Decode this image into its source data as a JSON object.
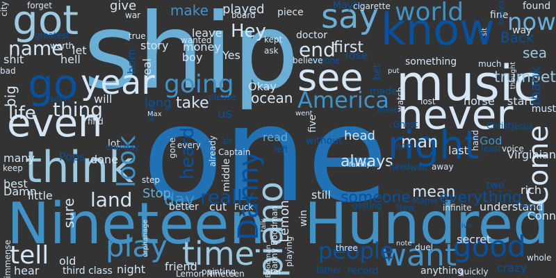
{
  "palette": {
    "background": "#333333",
    "pale": "#d6e6f4",
    "light": "#9ecae1",
    "mid": "#6baed6",
    "blue": "#4292c6",
    "strong": "#2171b5",
    "deep": "#08519c",
    "navy": "#08306b"
  },
  "words": [
    {
      "text": "one",
      "color": "strong"
    },
    {
      "text": "ship",
      "color": "mid"
    },
    {
      "text": "Nineteen",
      "color": "blue"
    },
    {
      "text": "Hundred",
      "color": "blue"
    },
    {
      "text": "music",
      "color": "pale"
    },
    {
      "text": "know",
      "color": "deep"
    },
    {
      "text": "never",
      "color": "pale"
    },
    {
      "text": "see",
      "color": "pale"
    },
    {
      "text": "go",
      "color": "deep"
    },
    {
      "text": "even",
      "color": "pale"
    },
    {
      "text": "think",
      "color": "light"
    },
    {
      "text": "right",
      "color": "deep"
    },
    {
      "text": "say",
      "color": "mid"
    },
    {
      "text": "got",
      "color": "light"
    },
    {
      "text": "year",
      "color": "pale"
    },
    {
      "text": "time",
      "color": "light"
    },
    {
      "text": "piano",
      "color": "light"
    },
    {
      "text": "want",
      "color": "blue"
    },
    {
      "text": "play",
      "color": "blue"
    },
    {
      "text": "going",
      "color": "blue"
    },
    {
      "text": "look",
      "color": "blue"
    },
    {
      "text": "world",
      "color": "blue"
    },
    {
      "text": "good",
      "color": "deep"
    },
    {
      "text": "now",
      "color": "mid"
    },
    {
      "text": "Come",
      "color": "pale"
    },
    {
      "text": "America",
      "color": "blue"
    },
    {
      "text": "tell",
      "color": "pale"
    },
    {
      "text": "people",
      "color": "deep"
    },
    {
      "text": "Danny",
      "color": "deep"
    },
    {
      "text": "thing",
      "color": "pale"
    },
    {
      "text": "life",
      "color": "pale"
    },
    {
      "text": "name",
      "color": "pale"
    },
    {
      "text": "end",
      "color": "pale"
    },
    {
      "text": "land",
      "color": "pale"
    },
    {
      "text": "man",
      "color": "pale"
    },
    {
      "text": "always",
      "color": "pale"
    },
    {
      "text": "day",
      "color": "blue"
    },
    {
      "text": "really",
      "color": "deep"
    },
    {
      "text": "heard",
      "color": "deep"
    },
    {
      "text": "mean",
      "color": "pale"
    },
    {
      "text": "someone",
      "color": "deep"
    },
    {
      "text": "everything",
      "color": "deep"
    },
    {
      "text": "sea",
      "color": "light"
    },
    {
      "text": "Back",
      "color": "deep"
    },
    {
      "text": "trumpet",
      "color": "light"
    },
    {
      "text": "first",
      "color": "pale"
    },
    {
      "text": "take",
      "color": "pale"
    },
    {
      "text": "ocean",
      "color": "pale"
    },
    {
      "text": "make",
      "color": "blue"
    },
    {
      "text": "played",
      "color": "pale"
    },
    {
      "text": "Hey",
      "color": "pale"
    },
    {
      "text": "long",
      "color": "deep"
    },
    {
      "text": "give",
      "color": "pale"
    },
    {
      "text": "head",
      "color": "pale"
    },
    {
      "text": "big",
      "color": "pale"
    },
    {
      "text": "Stop",
      "color": "mid"
    },
    {
      "text": "Virginian",
      "color": "pale"
    },
    {
      "text": "thank",
      "color": "deep"
    },
    {
      "text": "sure",
      "color": "pale"
    },
    {
      "text": "read",
      "color": "mid"
    },
    {
      "text": "still",
      "color": "pale"
    },
    {
      "text": "us",
      "color": "deep"
    },
    {
      "text": "horse",
      "color": "pale"
    },
    {
      "text": "start",
      "color": "pale"
    },
    {
      "text": "last",
      "color": "pale"
    },
    {
      "text": "Okay",
      "color": "pale"
    },
    {
      "text": "will",
      "color": "pale"
    },
    {
      "text": "lot",
      "color": "pale"
    },
    {
      "text": "done",
      "color": "pale"
    },
    {
      "text": "let",
      "color": "pale"
    },
    {
      "text": "hell",
      "color": "pale"
    },
    {
      "text": "born",
      "color": "deep"
    },
    {
      "text": "story",
      "color": "pale"
    },
    {
      "text": "money",
      "color": "pale"
    },
    {
      "text": "boy",
      "color": "pale"
    },
    {
      "text": "leave",
      "color": "pale"
    },
    {
      "text": "Yes",
      "color": "pale"
    },
    {
      "text": "lose",
      "color": "deep"
    },
    {
      "text": "shit",
      "color": "pale"
    },
    {
      "text": "understand",
      "color": "pale"
    },
    {
      "text": "secret",
      "color": "pale"
    },
    {
      "text": "rich",
      "color": "pale"
    },
    {
      "text": "must",
      "color": "pale"
    },
    {
      "text": "God",
      "color": "blue"
    },
    {
      "text": "old",
      "color": "pale"
    },
    {
      "text": "night",
      "color": "pale"
    },
    {
      "text": "friend",
      "color": "pale"
    },
    {
      "text": "hear",
      "color": "pale"
    },
    {
      "text": "little",
      "color": "pale"
    },
    {
      "text": "best",
      "color": "pale"
    },
    {
      "text": "Damn",
      "color": "pale"
    },
    {
      "text": "many",
      "color": "pale"
    },
    {
      "text": "Pops",
      "color": "deep"
    },
    {
      "text": "two",
      "color": "deep"
    },
    {
      "text": "fine",
      "color": "pale"
    },
    {
      "text": "way",
      "color": "pale"
    },
    {
      "text": "found",
      "color": "pale"
    },
    {
      "text": "something",
      "color": "pale"
    },
    {
      "text": "doctor",
      "color": "pale"
    },
    {
      "text": "better",
      "color": "pale"
    },
    {
      "text": "cut",
      "color": "pale"
    },
    {
      "text": "Fuck",
      "color": "pale"
    },
    {
      "text": "five",
      "color": "pale"
    },
    {
      "text": "Captain",
      "color": "pale"
    },
    {
      "text": "Danny Boodman",
      "color": "pale"
    },
    {
      "text": "Lemon",
      "color": "pale"
    },
    {
      "text": "crazy",
      "color": "deep"
    },
    {
      "text": "anything",
      "color": "pale"
    },
    {
      "text": "whole",
      "color": "pale"
    },
    {
      "text": "painting",
      "color": "pale"
    },
    {
      "text": "Lemon Nineteen",
      "color": "pale"
    },
    {
      "text": "immense",
      "color": "pale"
    },
    {
      "text": "third class",
      "color": "pale"
    },
    {
      "text": "record",
      "color": "deep"
    },
    {
      "text": "quickly",
      "color": "pale"
    },
    {
      "text": "duel",
      "color": "pale"
    },
    {
      "text": "three",
      "color": "pale"
    },
    {
      "text": "win",
      "color": "pale"
    },
    {
      "text": "playing",
      "color": "pale"
    },
    {
      "text": "Boodman",
      "color": "pale"
    },
    {
      "text": "later",
      "color": "pale"
    },
    {
      "text": "father",
      "color": "deep"
    },
    {
      "text": "made",
      "color": "deep"
    },
    {
      "text": "bet",
      "color": "deep"
    },
    {
      "text": "put",
      "color": "pale"
    },
    {
      "text": "watch",
      "color": "pale"
    },
    {
      "text": "lost",
      "color": "pale"
    },
    {
      "text": "without",
      "color": "deep"
    },
    {
      "text": "anyone",
      "color": "deep"
    },
    {
      "text": "believe",
      "color": "pale"
    },
    {
      "text": "much",
      "color": "pale"
    },
    {
      "text": "thought",
      "color": "pale"
    },
    {
      "text": "piece",
      "color": "pale"
    },
    {
      "text": "Maybe",
      "color": "deep"
    },
    {
      "text": "cigarette",
      "color": "pale"
    },
    {
      "text": "bravo",
      "color": "deep"
    },
    {
      "text": "forget",
      "color": "pale"
    },
    {
      "text": "board",
      "color": "pale"
    },
    {
      "text": "war",
      "color": "pale"
    },
    {
      "text": "true",
      "color": "pale"
    },
    {
      "text": "wanted",
      "color": "pale"
    },
    {
      "text": "kept",
      "color": "pale"
    },
    {
      "text": "ask",
      "color": "pale"
    },
    {
      "text": "real",
      "color": "pale"
    },
    {
      "text": "please",
      "color": "deep"
    },
    {
      "text": "city",
      "color": "pale"
    },
    {
      "text": "greatest",
      "color": "deep"
    },
    {
      "text": "worth",
      "color": "pale"
    },
    {
      "text": "bad",
      "color": "pale"
    },
    {
      "text": "seen",
      "color": "deep"
    },
    {
      "text": "find",
      "color": "pale"
    },
    {
      "text": "one day",
      "color": "deep"
    },
    {
      "text": "keys",
      "color": "deep"
    },
    {
      "text": "Max",
      "color": "pale"
    },
    {
      "text": "gone",
      "color": "pale"
    },
    {
      "text": "every",
      "color": "pale"
    },
    {
      "text": "already",
      "color": "pale"
    },
    {
      "text": "sir",
      "color": "deep"
    },
    {
      "text": "middle",
      "color": "pale"
    },
    {
      "text": "left",
      "color": "deep"
    },
    {
      "text": "knew",
      "color": "deep"
    },
    {
      "text": "family",
      "color": "pale"
    },
    {
      "text": "need",
      "color": "deep"
    },
    {
      "text": "wait",
      "color": "deep"
    },
    {
      "text": "away",
      "color": "pale"
    },
    {
      "text": "hand",
      "color": "pale"
    },
    {
      "text": "least",
      "color": "deep"
    },
    {
      "text": "voice",
      "color": "pale"
    },
    {
      "text": "went",
      "color": "pale"
    },
    {
      "text": "street",
      "color": "deep"
    },
    {
      "text": "step",
      "color": "pale"
    },
    {
      "text": "keep",
      "color": "pale"
    },
    {
      "text": "talk",
      "color": "pale"
    },
    {
      "text": "getting",
      "color": "deep"
    },
    {
      "text": "New",
      "color": "deep"
    },
    {
      "text": "Mama",
      "color": "deep"
    },
    {
      "text": "infinite",
      "color": "pale"
    },
    {
      "text": "Miss",
      "color": "deep"
    },
    {
      "text": "live",
      "color": "deep"
    },
    {
      "text": "note",
      "color": "pale"
    },
    {
      "text": "orphanage",
      "color": "pale"
    },
    {
      "text": "Conn",
      "color": "pale"
    },
    {
      "text": "Ghost",
      "color": "deep"
    },
    {
      "text": "Christ",
      "color": "deep"
    },
    {
      "text": "Jesus",
      "color": "deep"
    },
    {
      "text": "sit",
      "color": "pale"
    }
  ]
}
